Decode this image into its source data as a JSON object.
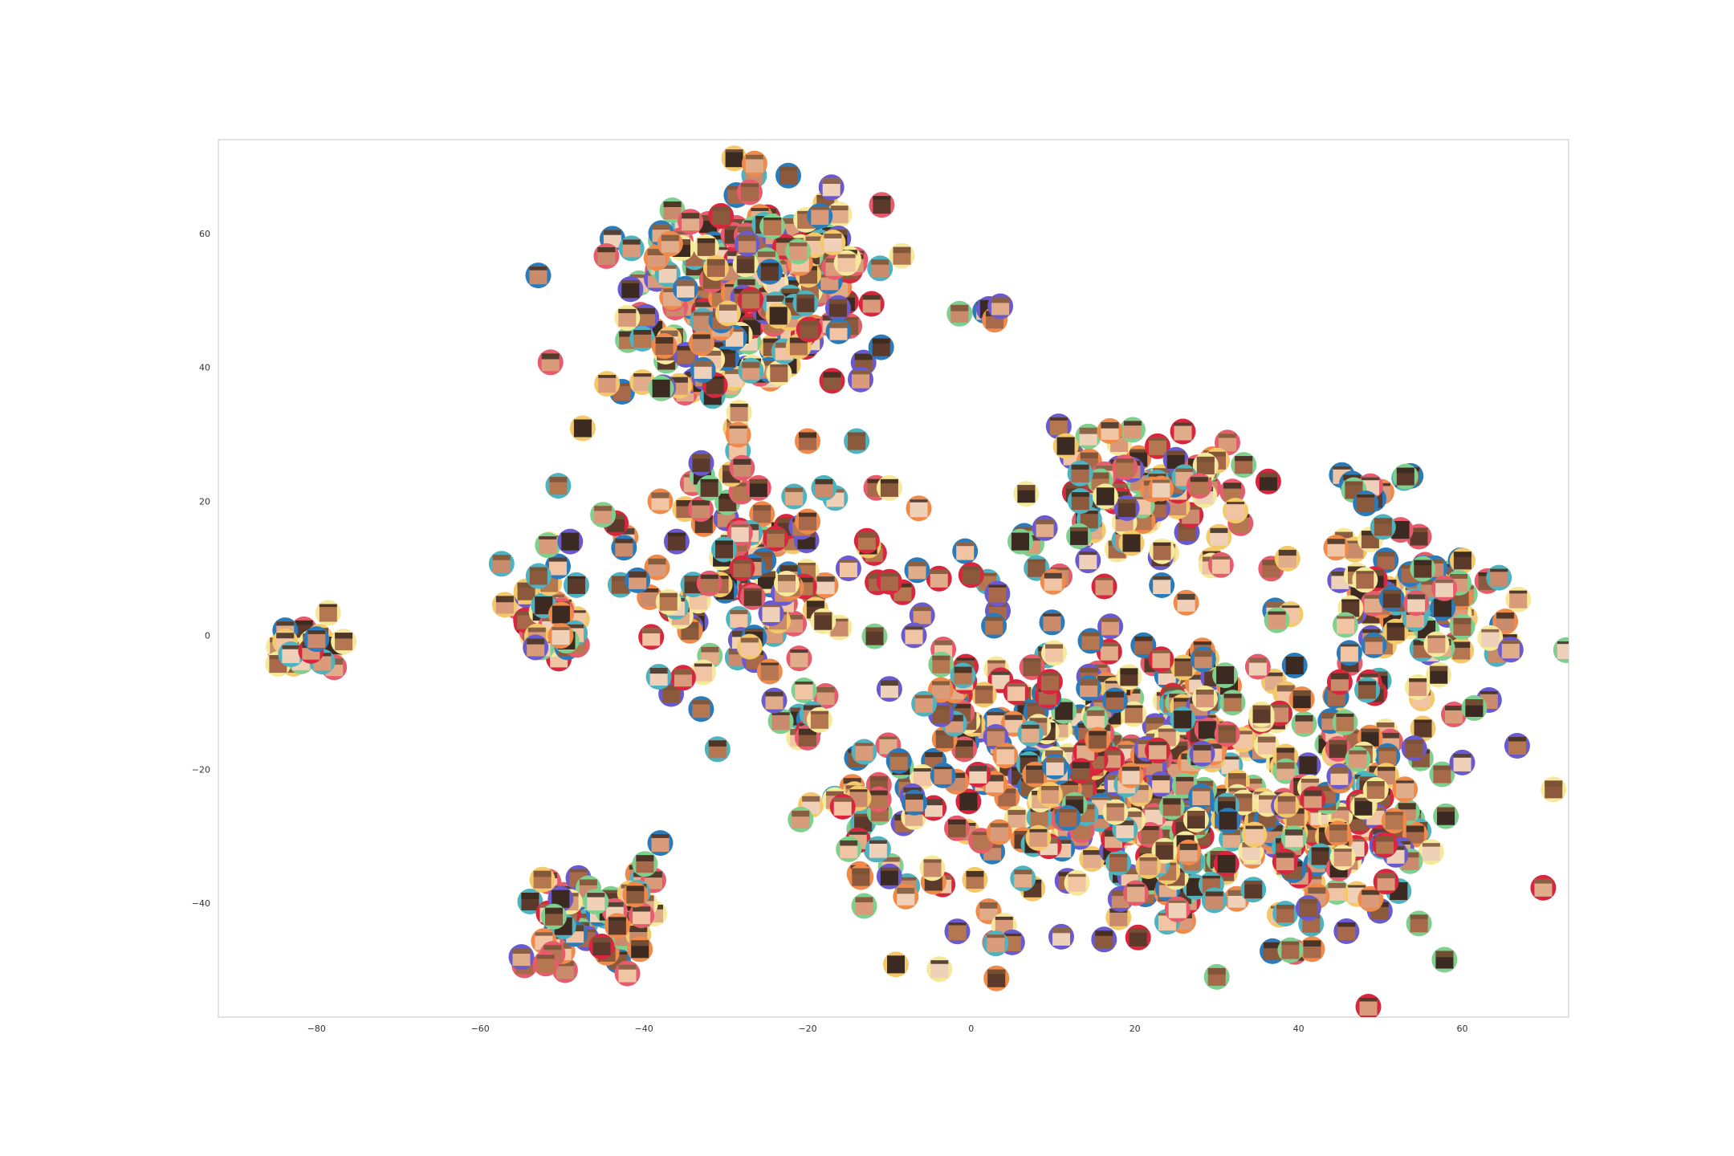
{
  "chart_data": {
    "type": "scatter",
    "title": "",
    "xlabel": "",
    "ylabel": "",
    "xlim": [
      -92,
      73
    ],
    "ylim": [
      -57,
      74
    ],
    "grid": false,
    "xticks": [
      -80,
      -60,
      -40,
      -20,
      0,
      20,
      40,
      60
    ],
    "yticks": [
      60,
      40,
      20,
      0,
      -20,
      -40
    ],
    "xtick_labels": [
      "−80",
      "−60",
      "−40",
      "−20",
      "0",
      "20",
      "40",
      "60"
    ],
    "ytick_labels": [
      "60",
      "40",
      "20",
      "0",
      "−20",
      "−40"
    ],
    "marker": "face-thumbnail-in-colored-ring",
    "ring_colors": [
      "#2b7bba",
      "#d7263d",
      "#f3c969",
      "#7fcf8f",
      "#4fb3bf",
      "#f08a4b",
      "#6a5acd",
      "#e65c6d",
      "#f5e99b"
    ],
    "face_tones": [
      "#e0ac8a",
      "#c98b6b",
      "#a8684a",
      "#f1c4a4",
      "#8b5a3c",
      "#3a2a22",
      "#d99b7a",
      "#5b3a2b",
      "#efd0b8",
      "#b5774f"
    ],
    "clusters": [
      {
        "cx": -82,
        "cy": -2,
        "sx": 2.2,
        "sy": 2.2,
        "n": 22
      },
      {
        "cx": -32,
        "cy": 47,
        "sx": 8.0,
        "sy": 7.5,
        "n": 130
      },
      {
        "cx": -23,
        "cy": 56,
        "sx": 5.5,
        "sy": 5.5,
        "n": 110
      },
      {
        "cx": 1,
        "cy": 48,
        "sx": 1.5,
        "sy": 1.2,
        "n": 6
      },
      {
        "cx": -52,
        "cy": 3,
        "sx": 2.5,
        "sy": 4.0,
        "n": 40
      },
      {
        "cx": -27,
        "cy": 8,
        "sx": 9.0,
        "sy": 8.5,
        "n": 110
      },
      {
        "cx": -21,
        "cy": -13,
        "sx": 2.0,
        "sy": 2.0,
        "n": 8
      },
      {
        "cx": -45,
        "cy": -42,
        "sx": 4.5,
        "sy": 3.5,
        "n": 60
      },
      {
        "cx": 20,
        "cy": 22,
        "sx": 7.0,
        "sy": 6.0,
        "n": 85
      },
      {
        "cx": 49,
        "cy": 22,
        "sx": 2.5,
        "sy": 1.5,
        "n": 10
      },
      {
        "cx": 54,
        "cy": 4,
        "sx": 7.5,
        "sy": 5.5,
        "n": 85
      },
      {
        "cx": 23,
        "cy": -22,
        "sx": 15.0,
        "sy": 11.5,
        "n": 480
      },
      {
        "cx": 46,
        "cy": -28,
        "sx": 5.0,
        "sy": 7.0,
        "n": 60
      },
      {
        "cx": -12,
        "cy": -25,
        "sx": 4.0,
        "sy": 6.0,
        "n": 30
      },
      {
        "cx": -2,
        "cy": -10,
        "sx": 3.0,
        "sy": 3.0,
        "n": 15
      }
    ],
    "outliers": [
      [
        -49,
        14
      ],
      [
        -45,
        18
      ],
      [
        -36,
        14
      ],
      [
        -37,
        5
      ],
      [
        -28,
        10
      ],
      [
        -10,
        8
      ],
      [
        -6,
        3
      ],
      [
        -15,
        10
      ],
      [
        -20,
        29
      ],
      [
        -14,
        29
      ],
      [
        -28,
        25
      ],
      [
        -26,
        22
      ],
      [
        -18,
        22
      ],
      [
        -10,
        22
      ],
      [
        -20,
        17
      ],
      [
        -17,
        38
      ],
      [
        -11,
        43
      ],
      [
        -32,
        22
      ],
      [
        -38,
        20
      ],
      [
        -31,
        -17
      ],
      [
        -33,
        -11
      ],
      [
        0,
        9
      ],
      [
        -1,
        -6
      ],
      [
        10,
        8
      ],
      [
        6,
        14
      ],
      [
        9,
        16
      ],
      [
        58,
        -27
      ],
      [
        60,
        -19
      ],
      [
        53,
        -23
      ],
      [
        30,
        -51
      ],
      [
        3,
        -46
      ],
      [
        39,
        -47
      ],
      [
        11,
        -45
      ],
      [
        -8,
        -39
      ],
      [
        -10,
        -36
      ],
      [
        -51,
        -42
      ],
      [
        -52,
        -49
      ],
      [
        -38,
        -31
      ],
      [
        -7,
        0
      ],
      [
        -10,
        -8
      ]
    ]
  }
}
